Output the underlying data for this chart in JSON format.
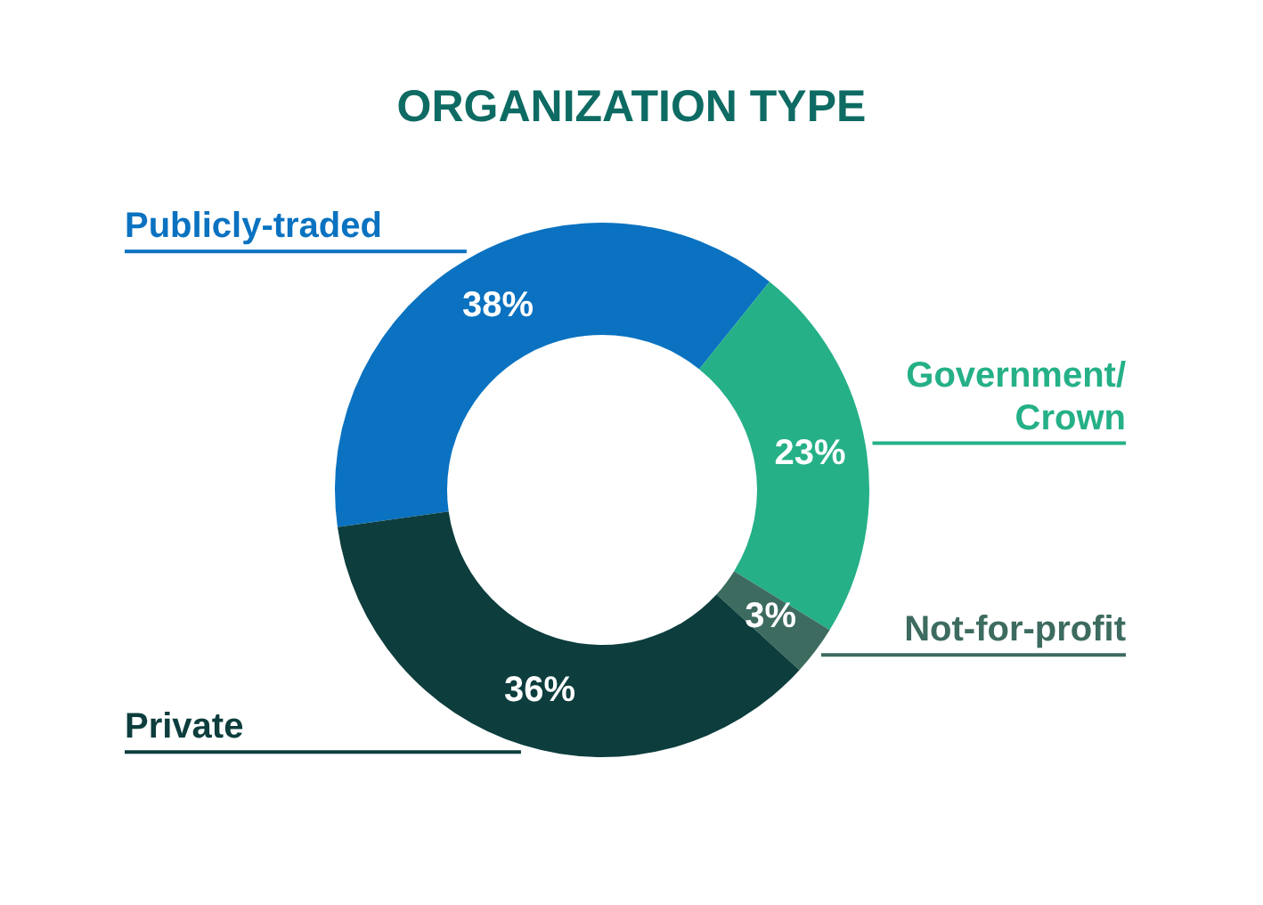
{
  "chart_data": {
    "type": "donut",
    "title": "ORGANIZATION TYPE",
    "categories": [
      "Publicly-traded",
      "Government/ Crown",
      "Not-for-profit",
      "Private"
    ],
    "values": [
      38,
      23,
      3,
      36
    ],
    "colors": [
      "#0a72c0",
      "#25b087",
      "#3d6b60",
      "#0d3d3d"
    ],
    "value_labels": [
      "38%",
      "23%",
      "3%",
      "36%"
    ],
    "legend": false
  }
}
